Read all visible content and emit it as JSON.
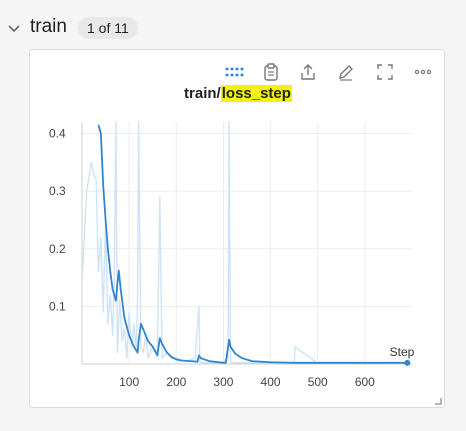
{
  "section": {
    "title": "train",
    "count": "1 of 11"
  },
  "panel": {
    "title_prefix": "train/",
    "title_highlight": "loss_step",
    "icons": [
      "drag-handle-icon",
      "clipboard-icon",
      "share-icon",
      "edit-icon",
      "fullscreen-icon",
      "more-icon"
    ]
  },
  "colors": {
    "smoothed": "#2f86d0",
    "raw": "#cfe3f7",
    "highlight": "#f2f20a",
    "grid": "#ececec"
  },
  "chart_data": {
    "type": "line",
    "xlabel": "Step",
    "ylabel": "",
    "xlim": [
      0,
      700
    ],
    "ylim": [
      0,
      0.42
    ],
    "x_ticks": [
      100,
      200,
      300,
      400,
      500,
      600
    ],
    "x_tick_labels": [
      "100",
      "200",
      "300",
      "400",
      "500",
      "600"
    ],
    "y_ticks": [
      0.1,
      0.2,
      0.3,
      0.4
    ],
    "y_tick_labels": [
      "0.1",
      "0.2",
      "0.3",
      "0.4"
    ],
    "grid": true,
    "series": [
      {
        "role": "raw",
        "x": [
          0,
          10,
          20,
          25,
          30,
          35,
          40,
          45,
          50,
          55,
          60,
          65,
          68,
          72,
          75,
          80,
          85,
          90,
          95,
          100,
          105,
          110,
          115,
          118,
          120,
          125,
          130,
          135,
          140,
          150,
          160,
          165,
          170,
          180,
          190,
          200,
          220,
          240,
          248,
          250,
          260,
          280,
          300,
          310,
          312,
          315,
          330,
          360,
          400,
          450,
          452,
          500,
          560,
          600,
          650,
          690
        ],
        "y": [
          0.14,
          0.3,
          0.35,
          0.33,
          0.32,
          0.16,
          0.22,
          0.09,
          0.25,
          0.07,
          0.12,
          0.05,
          0.13,
          0.42,
          0.02,
          0.11,
          0.04,
          0.06,
          0.01,
          0.09,
          0.03,
          0.07,
          0.02,
          0.12,
          0.42,
          0.03,
          0.02,
          0.05,
          0.01,
          0.03,
          0.02,
          0.29,
          0.01,
          0.02,
          0.01,
          0.01,
          0.005,
          0.01,
          0.1,
          0.003,
          0.002,
          0.002,
          0.003,
          0.01,
          0.42,
          0.003,
          0.002,
          0.002,
          0.001,
          0.001,
          0.03,
          0.001,
          0.001,
          0.002,
          0.001,
          0.001
        ]
      },
      {
        "role": "smoothed",
        "x": [
          35,
          40,
          45,
          50,
          55,
          60,
          65,
          70,
          72,
          75,
          78,
          82,
          90,
          100,
          110,
          118,
          120,
          125,
          130,
          140,
          150,
          160,
          165,
          170,
          180,
          190,
          200,
          210,
          230,
          245,
          248,
          252,
          270,
          290,
          305,
          310,
          312,
          315,
          325,
          340,
          360,
          400,
          450,
          500,
          550,
          600,
          650,
          690
        ],
        "y": [
          0.415,
          0.4,
          0.31,
          0.25,
          0.2,
          0.16,
          0.13,
          0.115,
          0.11,
          0.14,
          0.162,
          0.13,
          0.08,
          0.05,
          0.03,
          0.02,
          0.04,
          0.07,
          0.06,
          0.04,
          0.03,
          0.015,
          0.045,
          0.035,
          0.02,
          0.012,
          0.008,
          0.006,
          0.005,
          0.004,
          0.015,
          0.01,
          0.005,
          0.003,
          0.002,
          0.03,
          0.042,
          0.03,
          0.018,
          0.01,
          0.005,
          0.003,
          0.002,
          0.002,
          0.002,
          0.002,
          0.002,
          0.002
        ]
      }
    ],
    "last_point": {
      "x": 690,
      "y": 0.002
    }
  }
}
